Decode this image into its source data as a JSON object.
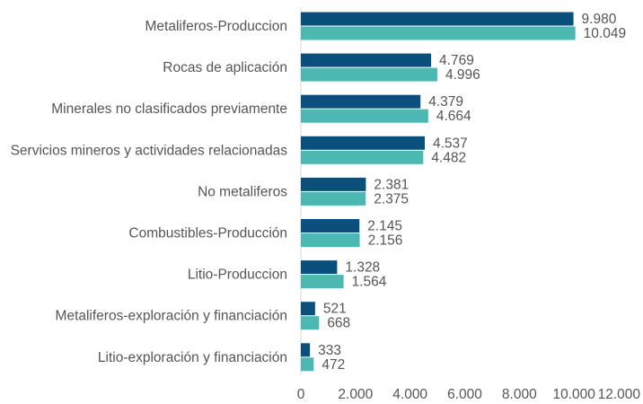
{
  "chart_data": {
    "type": "bar",
    "orientation": "horizontal",
    "categories": [
      "Metaliferos-Produccion",
      "Rocas de aplicación",
      "Minerales no clasificados previamente",
      "Servicios mineros y actividades relacionadas",
      "No metaliferos",
      "Combustibles-Producción",
      "Litio-Produccion",
      "Metaliferos-exploración y financiación",
      "Litio-exploración y financiación"
    ],
    "series": [
      {
        "color": "#0b4f7c",
        "values": [
          9980,
          4769,
          4379,
          4537,
          2381,
          2145,
          1328,
          521,
          333
        ],
        "labels": [
          "9.980",
          "4.769",
          "4.379",
          "4.537",
          "2.381",
          "2.145",
          "1.328",
          "521",
          "333"
        ]
      },
      {
        "color": "#4db8b2",
        "values": [
          10049,
          4996,
          4664,
          4482,
          2375,
          2156,
          1564,
          668,
          472
        ],
        "labels": [
          "10.049",
          "4.996",
          "4.664",
          "4.482",
          "2.375",
          "2.156",
          "1.564",
          "668",
          "472"
        ]
      }
    ],
    "xlim": [
      0,
      12000
    ],
    "xticks": [
      0,
      2000,
      4000,
      6000,
      8000,
      10000,
      12000
    ],
    "xtick_labels": [
      "0",
      "2.000",
      "4.000",
      "6.000",
      "8.000",
      "10.000",
      "12.000"
    ],
    "grid": false,
    "legend": "none"
  }
}
